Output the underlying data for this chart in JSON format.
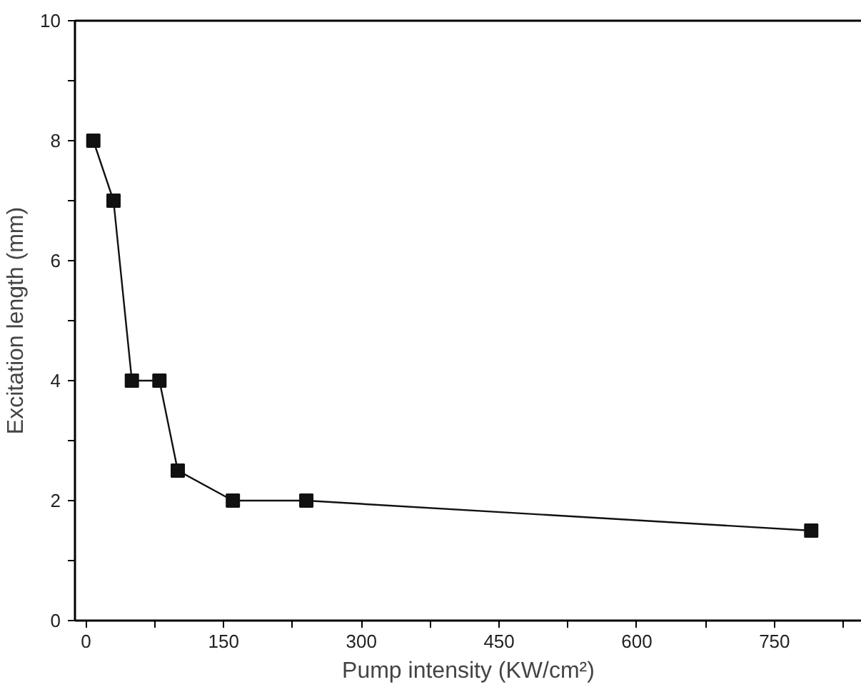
{
  "chart_data": {
    "type": "line",
    "xlabel": "Pump intensity (KW/cm²)",
    "ylabel": "Excitation length (mm)",
    "x": [
      8,
      30,
      50,
      80,
      100,
      160,
      240,
      790
    ],
    "series": [
      {
        "color": "#111111",
        "values": [
          8,
          7,
          4,
          4,
          2.5,
          2,
          2,
          1.5
        ]
      }
    ],
    "marker": "square",
    "line_style": "solid",
    "grid": false,
    "xlim": [
      -12,
      845
    ],
    "ylim": [
      0,
      10
    ],
    "xticks": [
      0,
      {
        "value": 75,
        "label": null
      },
      150,
      {
        "value": 225,
        "label": null
      },
      300,
      {
        "value": 375,
        "label": null
      },
      450,
      {
        "value": 525,
        "label": null
      },
      600,
      {
        "value": 675,
        "label": null
      },
      750,
      {
        "value": 825,
        "label": null
      }
    ],
    "yticks": [
      0,
      {
        "value": 1,
        "label": null
      },
      2,
      {
        "value": 3,
        "label": null
      },
      4,
      {
        "value": 5,
        "label": null
      },
      6,
      {
        "value": 7,
        "label": null
      },
      8,
      {
        "value": 9,
        "label": null
      },
      10
    ]
  }
}
